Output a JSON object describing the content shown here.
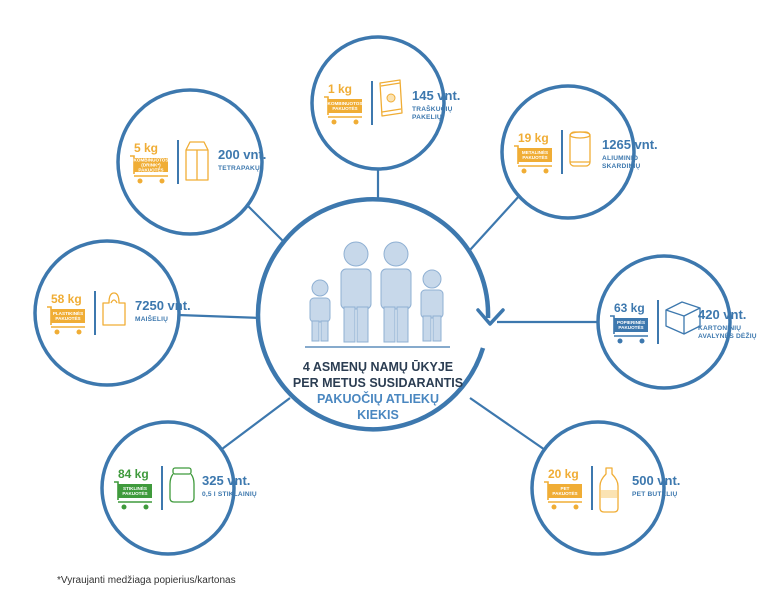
{
  "colors": {
    "ring": "#3d78ae",
    "people": "#c7d8ea",
    "people_stroke": "#8fb0d3",
    "orange": "#f0ad35",
    "green": "#3f9a3c",
    "blue": "#3d78ae",
    "text_dark": "#2b3d52",
    "text_blue": "#4a87c0"
  },
  "center": {
    "line1": "4 ASMENŲ NAMŲ ŪKYJE",
    "line2": "PER METUS SUSIDARANTIS",
    "line3": "PAKUOČIŲ ATLIEKŲ",
    "line4": "KIEKIS"
  },
  "nodes": [
    {
      "id": "chips",
      "kg": "1 kg",
      "tag": [
        "KOMBINUOTOS",
        "PAKUOTĖS"
      ],
      "count": "145 vnt.",
      "caption": [
        "TRAŠKUČIŲ",
        "PAKELIŲ"
      ],
      "color": "#f0ad35",
      "icon": "chips-bag-icon"
    },
    {
      "id": "cans",
      "kg": "19 kg",
      "tag": [
        "METALINĖS",
        "PAKUOTĖS"
      ],
      "count": "1265 vnt.",
      "caption": [
        "ALIUMINIO",
        "SKARDINIŲ"
      ],
      "color": "#f0ad35",
      "icon": "can-icon"
    },
    {
      "id": "boxes",
      "kg": "63 kg",
      "tag": [
        "POPIERINĖS",
        "PAKUOTĖS"
      ],
      "count": "420 vnt.",
      "caption": [
        "KARTONINIŲ",
        "AVALYNĖS DĖŽIŲ"
      ],
      "color": "#3d78ae",
      "icon": "box-icon"
    },
    {
      "id": "pet",
      "kg": "20 kg",
      "tag": [
        "PET",
        "PAKUOTĖS"
      ],
      "count": "500 vnt.",
      "caption": [
        "PET BUTELIŲ"
      ],
      "color": "#f0ad35",
      "icon": "bottle-icon"
    },
    {
      "id": "jars",
      "kg": "84 kg",
      "tag": [
        "STIKLINĖS",
        "PAKUOTĖS"
      ],
      "count": "325 vnt.",
      "caption": [
        "0,5 l STIKLAINIŲ"
      ],
      "color": "#3f9a3c",
      "icon": "jar-icon"
    },
    {
      "id": "bags",
      "kg": "58 kg",
      "tag": [
        "PLASTIKINĖS",
        "PAKUOTĖS"
      ],
      "count": "7250 vnt.",
      "caption": [
        "MAIŠELIŲ"
      ],
      "color": "#f0ad35",
      "icon": "plastic-bag-icon"
    },
    {
      "id": "tetra",
      "kg": "5 kg",
      "tag": [
        "KOMBINUOTOS",
        "(DRINK*)",
        "PAKUOTĖS"
      ],
      "count": "200 vnt.",
      "caption": [
        "TETRAPAKŲ"
      ],
      "color": "#f0ad35",
      "icon": "tetra-pack-icon"
    }
  ],
  "footnote": "*Vyraujanti medžiaga popierius/kartonas"
}
